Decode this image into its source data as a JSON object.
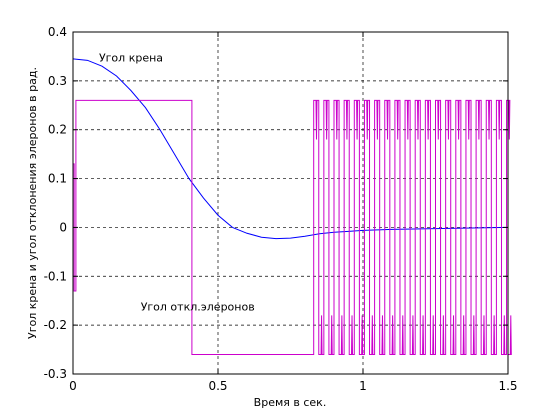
{
  "chart_data": {
    "type": "line",
    "title": "",
    "xlabel": "Время в сек.",
    "ylabel": "Угол крена и угол отклонения элеронов в рад.",
    "xlim": [
      0,
      1.5
    ],
    "ylim": [
      -0.3,
      0.4
    ],
    "xticks": [
      0,
      0.5,
      1,
      1.5
    ],
    "xtick_labels": [
      "0",
      "0.5",
      "1",
      "1.5"
    ],
    "yticks": [
      -0.3,
      -0.2,
      -0.1,
      0,
      0.1,
      0.2,
      0.3,
      0.4
    ],
    "ytick_labels": [
      "-0.3",
      "-0.2",
      "-0.1",
      "0",
      "0.1",
      "0.2",
      "0.3",
      "0.4"
    ],
    "grid": true,
    "grid_style": "dashed",
    "series": [
      {
        "color": "#0000ff",
        "label_text": "Угол крена",
        "label_at": [
          0.2,
          0.34
        ],
        "x": [
          0.0,
          0.05,
          0.1,
          0.15,
          0.2,
          0.25,
          0.3,
          0.35,
          0.4,
          0.45,
          0.5,
          0.55,
          0.6,
          0.65,
          0.7,
          0.75,
          0.8,
          0.85,
          0.9,
          0.95,
          1.0,
          1.05,
          1.1,
          1.2,
          1.3,
          1.4,
          1.5
        ],
        "y": [
          0.345,
          0.342,
          0.33,
          0.31,
          0.28,
          0.245,
          0.2,
          0.15,
          0.1,
          0.06,
          0.025,
          0.0,
          -0.012,
          -0.02,
          -0.023,
          -0.022,
          -0.018,
          -0.013,
          -0.01,
          -0.008,
          -0.006,
          -0.005,
          -0.004,
          -0.003,
          -0.002,
          -0.001,
          0.0
        ]
      },
      {
        "color": "#cc00cc",
        "label_text": "Угол откл.элеронов",
        "label_at": [
          0.43,
          -0.17
        ],
        "x": [
          0.0,
          0.0,
          0.004,
          0.004,
          0.01,
          0.01,
          0.41,
          0.41,
          0.83,
          0.83
        ],
        "y": [
          0.0,
          0.13,
          0.13,
          -0.13,
          -0.13,
          0.26,
          0.26,
          -0.26,
          -0.26,
          0.26
        ],
        "chatter": {
          "start": 0.83,
          "end": 1.5,
          "period": 0.035,
          "upper": 0.26,
          "lower": -0.26,
          "pinch_upper": [
            0.26,
            0.18
          ],
          "pinch_lower": [
            -0.26,
            -0.18
          ]
        }
      }
    ]
  }
}
